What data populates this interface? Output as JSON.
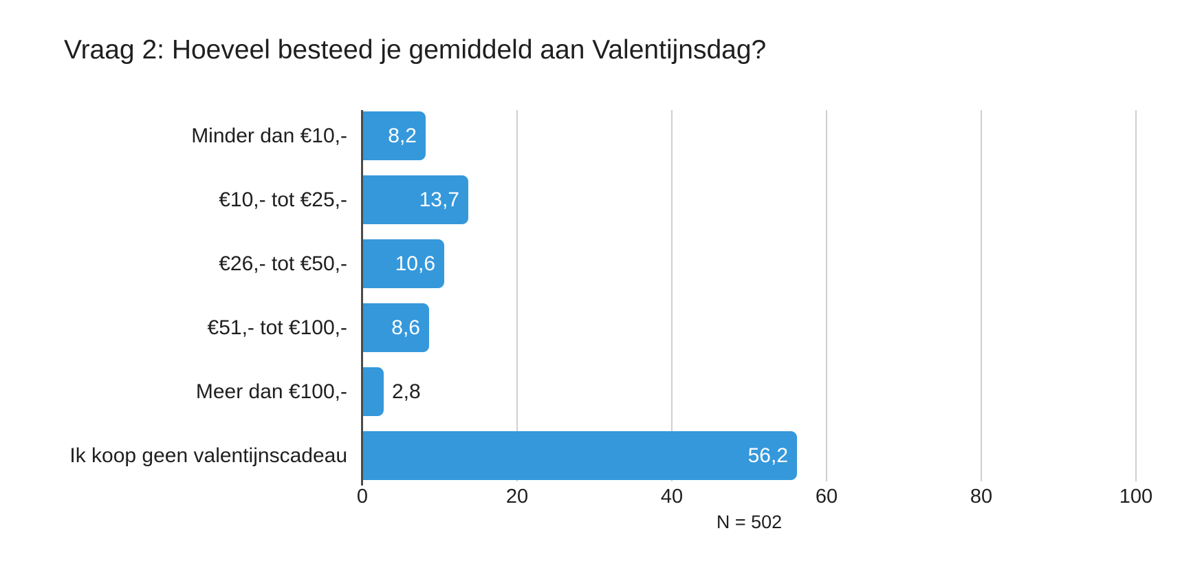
{
  "title": "Vraag 2: Hoeveel besteed je gemiddeld aan Valentijnsdag?",
  "note": "N = 502",
  "colors": {
    "background": "#FFFFFF",
    "bar": "#3598DB",
    "value_label_inside": "#FFFFFF",
    "text": "#1F1F1F",
    "gridline": "#CFCFCF",
    "zero_axis_line": "#4A4A4A"
  },
  "chart_data": {
    "type": "bar",
    "orientation": "horizontal",
    "title": "Vraag 2: Hoeveel besteed je gemiddeld aan Valentijnsdag?",
    "categories": [
      "Minder dan €10,-",
      "€10,- tot €25,-",
      "€26,- tot €50,-",
      "€51,- tot €100,-",
      "Meer dan €100,-",
      "Ik koop geen valentijnscadeau"
    ],
    "values": [
      8.2,
      13.7,
      10.6,
      8.6,
      2.8,
      56.2
    ],
    "value_labels": [
      "8,2",
      "13,7",
      "10,6",
      "8,6",
      "2,8",
      "56,2"
    ],
    "xlabel": "",
    "ylabel": "",
    "xlim": [
      0,
      100
    ],
    "x_ticks": [
      0,
      20,
      40,
      60,
      80,
      100
    ],
    "x_tick_labels": [
      "0",
      "20",
      "40",
      "60",
      "80",
      "100"
    ],
    "grid": "vertical-gridlines-on",
    "legend": "none",
    "note": "N = 502"
  }
}
